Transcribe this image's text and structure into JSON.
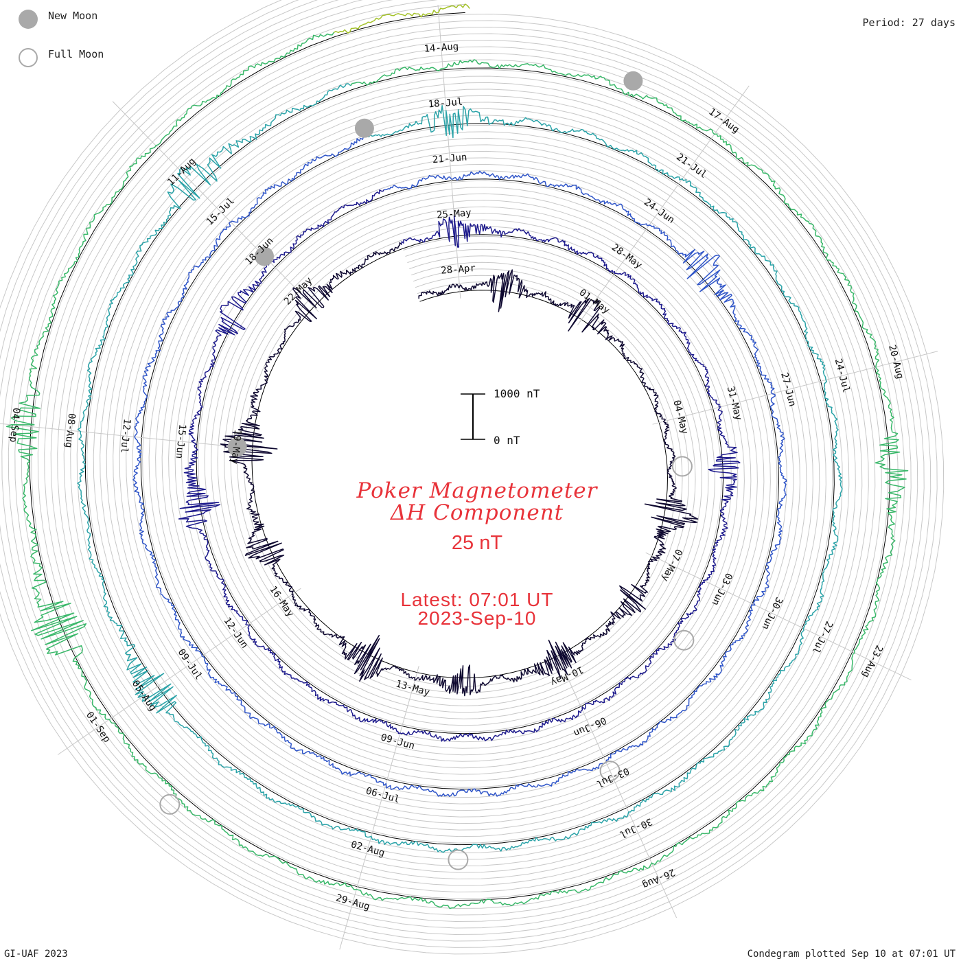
{
  "legend": {
    "new_moon_label": "New Moon",
    "full_moon_label": "Full Moon",
    "new_moon_color": "#a9a9a9",
    "full_moon_color": "#a9a9a9"
  },
  "period_label": "Period: 27 days",
  "title_line1": "Poker Magnetometer",
  "title_line2": "ΔH Component",
  "ring_step_label": "25 nT",
  "latest_label": "Latest: 07:01 UT",
  "latest_date": "2023-Sep-10",
  "footer_left": "GI-UAF 2023",
  "footer_right": "Condegram plotted Sep 10 at 07:01 UT",
  "chart_data": {
    "type": "condegram",
    "period_days": 27,
    "scale_bar": {
      "top_label": "1000 nT",
      "bottom_label": "0 nT",
      "top_value_nT": 1000,
      "bottom_value_nT": 0
    },
    "ring_step_nT": 25,
    "start_date": "2023-04-27",
    "end_date": "2023-09-10",
    "colors": [
      "#0e0830",
      "#1d1a8c",
      "#2f55c8",
      "#2ba3a8",
      "#3ab86a",
      "#a4c22a",
      "#c8a01e",
      "#b8501a",
      "#b01f14"
    ],
    "date_labels": [
      "28-Apr",
      "01-May",
      "04-May",
      "07-May",
      "10-May",
      "13-May",
      "16-May",
      "19-May",
      "22-May",
      "25-May",
      "28-May",
      "31-May",
      "03-Jun",
      "06-Jun",
      "09-Jun",
      "12-Jun",
      "15-Jun",
      "18-Jun",
      "21-Jun",
      "24-Jun",
      "27-Jun",
      "30-Jun",
      "03-Jul",
      "06-Jul",
      "09-Jul",
      "12-Jul",
      "15-Jul",
      "18-Jul",
      "21-Jul",
      "24-Jul",
      "27-Jul",
      "30-Jul",
      "02-Aug",
      "05-Aug",
      "08-Aug",
      "11-Aug",
      "14-Aug",
      "17-Aug",
      "20-Aug",
      "23-Aug",
      "26-Aug",
      "29-Aug",
      "01-Sep",
      "04-Sep"
    ],
    "new_moons": [
      "2023-05-19",
      "2023-06-18",
      "2023-07-17",
      "2023-08-16"
    ],
    "full_moons": [
      "2023-05-05",
      "2023-06-04",
      "2023-07-03",
      "2023-08-01",
      "2023-08-31"
    ],
    "disturbances": [
      {
        "date": "2023-04-29",
        "amp": 6
      },
      {
        "date": "2023-05-01",
        "amp": 7
      },
      {
        "date": "2023-05-06",
        "amp": 8
      },
      {
        "date": "2023-05-08",
        "amp": 5
      },
      {
        "date": "2023-05-10",
        "amp": 6
      },
      {
        "date": "2023-05-12",
        "amp": 5
      },
      {
        "date": "2023-05-14",
        "amp": 7
      },
      {
        "date": "2023-05-17",
        "amp": 6
      },
      {
        "date": "2023-05-19",
        "amp": 9
      },
      {
        "date": "2023-05-22",
        "amp": 6
      },
      {
        "date": "2023-05-25",
        "amp": 5
      },
      {
        "date": "2023-06-01",
        "amp": 5
      },
      {
        "date": "2023-06-14",
        "amp": 6
      },
      {
        "date": "2023-06-17",
        "amp": 5
      },
      {
        "date": "2023-06-25",
        "amp": 6
      },
      {
        "date": "2023-07-18",
        "amp": 5
      },
      {
        "date": "2023-08-05",
        "amp": 6
      },
      {
        "date": "2023-08-11",
        "amp": 6
      },
      {
        "date": "2023-08-21",
        "amp": 5
      },
      {
        "date": "2023-09-02",
        "amp": 9
      },
      {
        "date": "2023-09-04",
        "amp": 5
      }
    ]
  }
}
